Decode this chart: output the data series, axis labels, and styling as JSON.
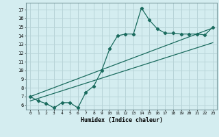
{
  "xlabel": "Humidex (Indice chaleur)",
  "bg_color": "#d4edf0",
  "line_color": "#1a6b5e",
  "grid_color": "#b8d4d8",
  "x_ticks": [
    0,
    1,
    2,
    3,
    4,
    5,
    6,
    7,
    8,
    9,
    10,
    11,
    12,
    13,
    14,
    15,
    16,
    17,
    18,
    19,
    20,
    21,
    22,
    23
  ],
  "y_ticks": [
    6,
    7,
    8,
    9,
    10,
    11,
    12,
    13,
    14,
    15,
    16,
    17
  ],
  "ylim": [
    5.5,
    17.8
  ],
  "xlim": [
    -0.5,
    23.5
  ],
  "line1_x": [
    0,
    1,
    2,
    3,
    4,
    5,
    6,
    7,
    8,
    9,
    10,
    11,
    12,
    13,
    14,
    15,
    16,
    17,
    18,
    19,
    20,
    21,
    22,
    23
  ],
  "line1_y": [
    7.0,
    6.5,
    6.2,
    5.7,
    6.3,
    6.3,
    5.7,
    7.5,
    8.2,
    10.0,
    12.5,
    14.0,
    14.2,
    14.2,
    17.2,
    15.8,
    14.8,
    14.3,
    14.3,
    14.2,
    14.2,
    14.2,
    14.1,
    15.0
  ],
  "line2_x": [
    0,
    23
  ],
  "line2_y": [
    7.0,
    14.9
  ],
  "line3_x": [
    0,
    23
  ],
  "line3_y": [
    6.5,
    13.2
  ]
}
